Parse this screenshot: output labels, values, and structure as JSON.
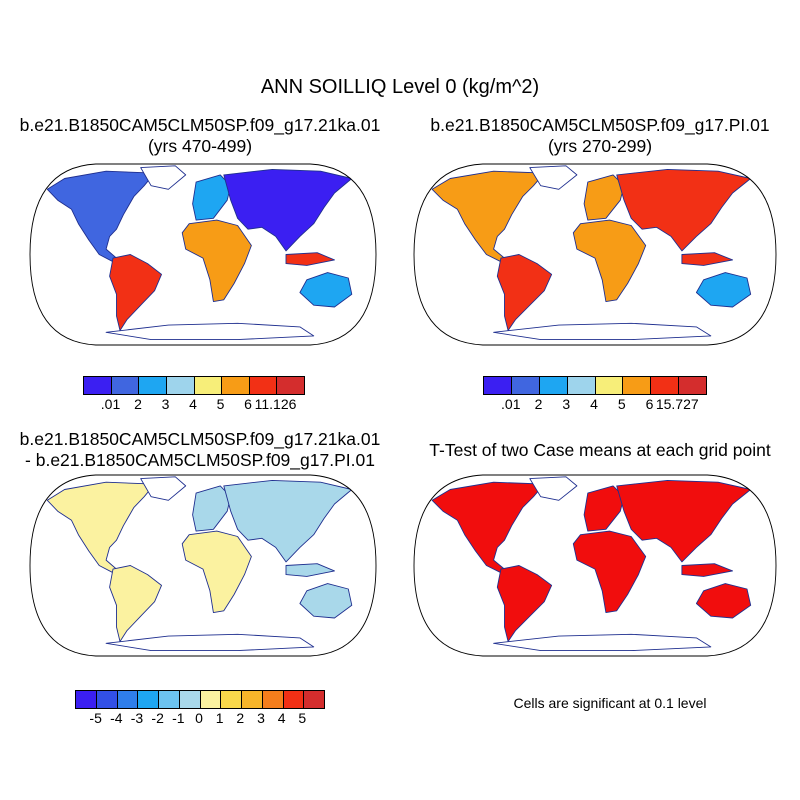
{
  "title": "ANN SOILLIQ Level 0 (kg/m^2)",
  "panels": {
    "top_left": {
      "line1": "b.e21.B1850CAM5CLM50SP.f09_g17.21ka.01",
      "line2": "(yrs 470-499)"
    },
    "top_right": {
      "line1": "b.e21.B1850CAM5CLM50SP.f09_g17.PI.01",
      "line2": "(yrs 270-299)"
    },
    "bottom_left": {
      "line1": "b.e21.B1850CAM5CLM50SP.f09_g17.21ka.01",
      "line2": "- b.e21.B1850CAM5CLM50SP.f09_g17.PI.01"
    },
    "bottom_right": {
      "line1": "T-Test of two Case means at each grid point"
    }
  },
  "colorbars": {
    "case1": {
      "colors": [
        "#3b1ff2",
        "#4066e0",
        "#1ea6f2",
        "#9ed4ec",
        "#f7ee79",
        "#f79c16",
        "#f23015",
        "#d42d2d"
      ],
      "labels": [
        ".01",
        "2",
        "3",
        "4",
        "5",
        "6",
        "11.126"
      ]
    },
    "case2": {
      "colors": [
        "#3b1ff2",
        "#4066e0",
        "#1ea6f2",
        "#9ed4ec",
        "#f7ee79",
        "#f79c16",
        "#f23015",
        "#d42d2d"
      ],
      "labels": [
        ".01",
        "2",
        "3",
        "4",
        "5",
        "6",
        "15.727"
      ]
    },
    "diff": {
      "colors": [
        "#3b1ff2",
        "#3250e6",
        "#2f7eea",
        "#1ea6f2",
        "#6cc3f0",
        "#a9d8ea",
        "#fbf2a0",
        "#f9d84b",
        "#f7b52a",
        "#f57e1c",
        "#f23015",
        "#d42d2d"
      ],
      "labels": [
        "-5",
        "-4",
        "-3",
        "-2",
        "-1",
        "0",
        "1",
        "2",
        "3",
        "4",
        "5"
      ]
    }
  },
  "significance_note": "Cells are significant at 0.1 level",
  "map_colors": {
    "ocean": "#ffffff",
    "coast": "#1f2f8f",
    "ttest": "#f10d0d"
  }
}
